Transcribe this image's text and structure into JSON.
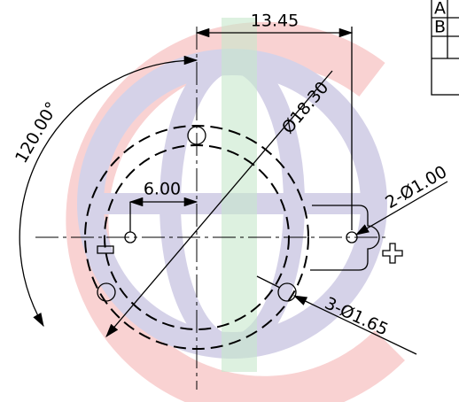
{
  "dimensions": {
    "width_between_holes": "13.45",
    "outer_diameter": "Ø18.30",
    "angle": "120.00°",
    "small_hole_offset": "6.00",
    "small_holes": "2-Ø1.00",
    "large_holes": "3-Ø1.65"
  },
  "table": {
    "rows": [
      "A",
      "B"
    ]
  }
}
